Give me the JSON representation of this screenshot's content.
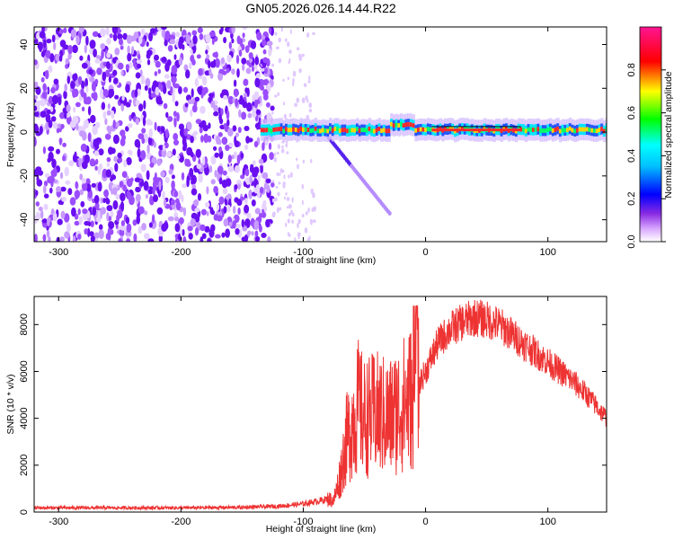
{
  "title": "GN05.2026.026.14.44.R22",
  "chart_data": [
    {
      "type": "heatmap",
      "name": "spectrogram",
      "xlabel": "Height of straight line (km)",
      "ylabel": "Frequency (Hz)",
      "xlim": [
        -320,
        148
      ],
      "ylim": [
        -50,
        48
      ],
      "xticks": [
        -300,
        -200,
        -100,
        0,
        100
      ],
      "yticks": [
        -40,
        -20,
        0,
        20,
        40
      ],
      "colorbar": {
        "label": "Normalized spectral amplitude",
        "range": [
          0,
          1
        ],
        "ticks": [
          "0.0",
          "0.2",
          "0.4",
          "0.6",
          "0.8"
        ],
        "tick_values": [
          0.0,
          0.2,
          0.4,
          0.6,
          0.8
        ],
        "colors": [
          "#ffffff",
          "#a020f0",
          "#0000ff",
          "#00ffff",
          "#00ff00",
          "#ffff00",
          "#ff0000",
          "#ff1493"
        ]
      },
      "regions": [
        {
          "description": "broadband noise",
          "x_range": [
            -320,
            -125
          ],
          "amplitude": 0.15
        },
        {
          "description": "sparse noise",
          "x_range": [
            -125,
            -90
          ],
          "amplitude": 0.05
        },
        {
          "description": "signal band",
          "x_range": [
            -135,
            148
          ],
          "freq": 1,
          "amplitude": 0.9
        }
      ]
    },
    {
      "type": "line",
      "name": "snr",
      "xlabel": "Height of straight line (km)",
      "ylabel": "SNR (10 * v/v)",
      "xlim": [
        -320,
        148
      ],
      "ylim": [
        0,
        9200
      ],
      "xticks": [
        -300,
        -200,
        -100,
        0,
        100
      ],
      "yticks": [
        0,
        2000,
        4000,
        6000,
        8000
      ],
      "color": "#ee3333",
      "x": [
        -320,
        -250,
        -200,
        -150,
        -120,
        -100,
        -90,
        -80,
        -75,
        -70,
        -65,
        -60,
        -55,
        -50,
        -40,
        -30,
        -20,
        -10,
        0,
        10,
        20,
        30,
        40,
        50,
        60,
        70,
        80,
        90,
        100,
        110,
        120,
        130,
        140,
        148
      ],
      "values": [
        180,
        180,
        180,
        200,
        250,
        350,
        450,
        550,
        500,
        1500,
        3000,
        3800,
        4500,
        4000,
        4200,
        4000,
        4500,
        5000,
        6000,
        7200,
        7800,
        8100,
        8300,
        8200,
        8000,
        7600,
        7200,
        6800,
        6400,
        6000,
        5600,
        5100,
        4500,
        4000
      ]
    }
  ]
}
